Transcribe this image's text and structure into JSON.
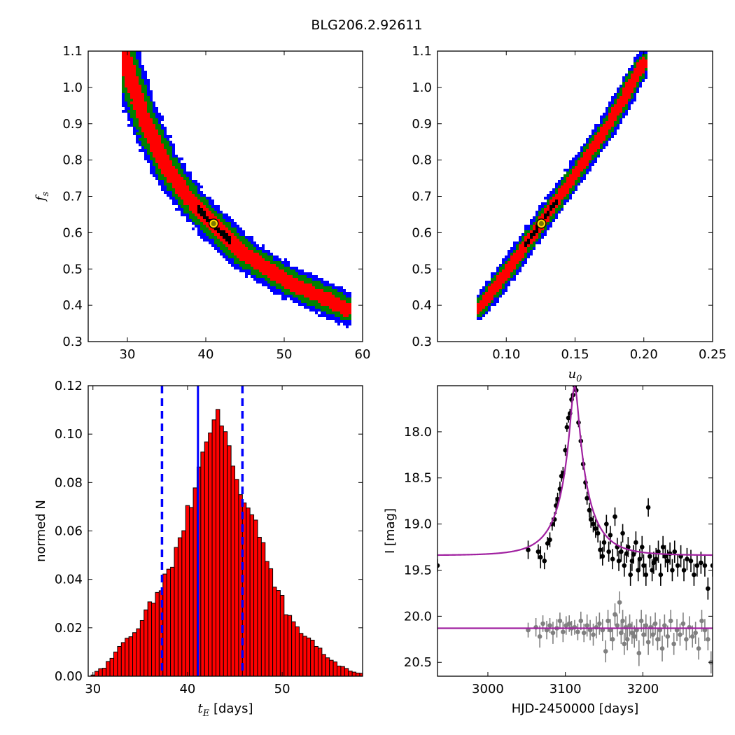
{
  "figure": {
    "title": "BLG206.2.92611"
  },
  "chart_data": [
    {
      "id": "panel_fs_vs_tE",
      "type": "heatmap",
      "xlabel": "",
      "ylabel": "f_s",
      "xlim": [
        25,
        60
      ],
      "ylim": [
        0.3,
        1.1
      ],
      "xticks": [
        "30",
        "40",
        "50",
        "60"
      ],
      "yticks": [
        "0.3",
        "0.4",
        "0.5",
        "0.6",
        "0.7",
        "0.8",
        "0.9",
        "1.0",
        "1.1"
      ],
      "levels": [
        {
          "color": "#0000ff",
          "halfwidth": 0.058
        },
        {
          "color": "#008000",
          "halfwidth": 0.042
        },
        {
          "color": "#ff0000",
          "halfwidth": 0.024
        },
        {
          "color": "#000000",
          "halfwidth": 0.008
        }
      ],
      "ridge_points": [
        [
          29.5,
          1.09
        ],
        [
          32,
          0.92
        ],
        [
          35,
          0.78
        ],
        [
          38,
          0.69
        ],
        [
          41,
          0.62
        ],
        [
          45,
          0.54
        ],
        [
          50,
          0.47
        ],
        [
          55,
          0.42
        ],
        [
          58,
          0.39
        ]
      ],
      "best_fit": {
        "x": 41.0,
        "y": 0.625
      }
    },
    {
      "id": "panel_fs_vs_u0",
      "type": "heatmap",
      "xlabel": "u_0",
      "ylabel": "",
      "xlim": [
        0.05,
        0.25
      ],
      "ylim": [
        0.3,
        1.1
      ],
      "xticks": [
        "0.10",
        "0.15",
        "0.20",
        "0.25"
      ],
      "yticks": [
        "0.3",
        "0.4",
        "0.5",
        "0.6",
        "0.7",
        "0.8",
        "0.9",
        "1.0",
        "1.1"
      ],
      "levels": [
        {
          "color": "#0000ff",
          "halfwidth": 0.036
        },
        {
          "color": "#008000",
          "halfwidth": 0.026
        },
        {
          "color": "#ff0000",
          "halfwidth": 0.016
        },
        {
          "color": "#000000",
          "halfwidth": 0.006
        }
      ],
      "ridge_points": [
        [
          0.08,
          0.39
        ],
        [
          0.1,
          0.49
        ],
        [
          0.125,
          0.625
        ],
        [
          0.15,
          0.76
        ],
        [
          0.175,
          0.9
        ],
        [
          0.2,
          1.07
        ]
      ],
      "best_fit": {
        "x": 0.1255,
        "y": 0.625
      }
    },
    {
      "id": "panel_tE_histogram",
      "type": "bar",
      "xlabel": "t_E [days]",
      "ylabel": "normed N",
      "xlim": [
        29.5,
        58.5
      ],
      "ylim": [
        0.0,
        0.12
      ],
      "xticks": [
        "30",
        "40",
        "50"
      ],
      "yticks": [
        "0.00",
        "0.02",
        "0.04",
        "0.06",
        "0.08",
        "0.10",
        "0.12"
      ],
      "bar_color": "#ff0000",
      "bin_width": 0.4,
      "x_start": 29.8,
      "values": [
        0.0005,
        0.002,
        0.0031,
        0.0033,
        0.0061,
        0.0074,
        0.01,
        0.0123,
        0.0139,
        0.0157,
        0.0163,
        0.018,
        0.0196,
        0.023,
        0.0274,
        0.0307,
        0.0302,
        0.0346,
        0.0353,
        0.0422,
        0.0442,
        0.045,
        0.0532,
        0.0572,
        0.0601,
        0.0705,
        0.0697,
        0.0778,
        0.0864,
        0.0926,
        0.0968,
        0.1005,
        0.1059,
        0.1102,
        0.1034,
        0.101,
        0.0952,
        0.0868,
        0.0813,
        0.075,
        0.0716,
        0.0695,
        0.0667,
        0.0645,
        0.0574,
        0.0552,
        0.0474,
        0.0444,
        0.0368,
        0.0354,
        0.0334,
        0.0254,
        0.0251,
        0.0225,
        0.0204,
        0.0177,
        0.0165,
        0.0158,
        0.0149,
        0.0123,
        0.0116,
        0.009,
        0.0076,
        0.0066,
        0.0059,
        0.0042,
        0.004,
        0.0032,
        0.0021,
        0.0017,
        0.0013,
        0.0012
      ],
      "median": 41.1,
      "lower_bound": 37.3,
      "upper_bound": 45.8
    },
    {
      "id": "panel_light_curve",
      "type": "scatter",
      "xlabel": "HJD-2450000 [days]",
      "ylabel": "I [mag]",
      "xlim": [
        2935,
        3290
      ],
      "ylim": [
        20.65,
        17.5
      ],
      "xticks": [
        "3000",
        "3100",
        "3200"
      ],
      "yticks": [
        "18.0",
        "18.5",
        "19.0",
        "19.5",
        "20.0",
        "20.5"
      ],
      "model_color": "#a020a0",
      "event_model": {
        "t0": 3112,
        "tE": 41,
        "u0": 0.1255,
        "fs": 0.625,
        "baseline": 19.34
      },
      "flat_model": {
        "baseline": 20.13
      },
      "series": [
        {
          "name": "",
          "color": "#000000",
          "points": [
            [
              2935,
              19.45,
              0.07
            ],
            [
              3052,
              19.28,
              0.1
            ],
            [
              3065,
              19.3,
              0.08
            ],
            [
              3068,
              19.36,
              0.12
            ],
            [
              3073,
              19.4,
              0.09
            ],
            [
              3077,
              19.21,
              0.07
            ],
            [
              3080,
              19.17,
              0.08
            ],
            [
              3083,
              19.0,
              0.07
            ],
            [
              3086,
              18.95,
              0.08
            ],
            [
              3088,
              18.8,
              0.09
            ],
            [
              3090,
              18.73,
              0.07
            ],
            [
              3093,
              18.62,
              0.08
            ],
            [
              3095,
              18.48,
              0.06
            ],
            [
              3097,
              18.45,
              0.07
            ],
            [
              3100,
              18.2,
              0.06
            ],
            [
              3102,
              17.95,
              0.05
            ],
            [
              3104,
              17.85,
              0.05
            ],
            [
              3106,
              17.8,
              0.05
            ],
            [
              3108,
              17.65,
              0.04
            ],
            [
              3110,
              17.6,
              0.04
            ],
            [
              3112,
              17.5,
              0.04
            ],
            [
              3114,
              17.55,
              0.04
            ],
            [
              3117,
              17.9,
              0.05
            ],
            [
              3120,
              18.1,
              0.06
            ],
            [
              3123,
              18.35,
              0.06
            ],
            [
              3126,
              18.55,
              0.07
            ],
            [
              3128,
              18.72,
              0.07
            ],
            [
              3131,
              18.85,
              0.08
            ],
            [
              3133,
              18.95,
              0.09
            ],
            [
              3136,
              19.0,
              0.09
            ],
            [
              3139,
              19.05,
              0.1
            ],
            [
              3142,
              19.1,
              0.1
            ],
            [
              3145,
              19.28,
              0.1
            ],
            [
              3148,
              19.35,
              0.1
            ],
            [
              3150,
              19.2,
              0.1
            ],
            [
              3153,
              19.0,
              0.1
            ],
            [
              3156,
              19.3,
              0.11
            ],
            [
              3158,
              19.12,
              0.1
            ],
            [
              3161,
              19.38,
              0.11
            ],
            [
              3164,
              18.92,
              0.1
            ],
            [
              3167,
              19.25,
              0.1
            ],
            [
              3169,
              19.4,
              0.11
            ],
            [
              3172,
              19.3,
              0.11
            ],
            [
              3174,
              19.1,
              0.1
            ],
            [
              3176,
              19.45,
              0.12
            ],
            [
              3179,
              19.32,
              0.1
            ],
            [
              3181,
              19.25,
              0.11
            ],
            [
              3184,
              19.55,
              0.12
            ],
            [
              3186,
              19.4,
              0.11
            ],
            [
              3188,
              19.33,
              0.1
            ],
            [
              3191,
              19.2,
              0.12
            ],
            [
              3194,
              19.5,
              0.12
            ],
            [
              3196,
              19.38,
              0.11
            ],
            [
              3199,
              19.25,
              0.12
            ],
            [
              3201,
              19.45,
              0.12
            ],
            [
              3204,
              19.55,
              0.12
            ],
            [
              3207,
              18.82,
              0.1
            ],
            [
              3209,
              19.35,
              0.12
            ],
            [
              3212,
              19.5,
              0.12
            ],
            [
              3214,
              19.42,
              0.12
            ],
            [
              3217,
              19.38,
              0.12
            ],
            [
              3220,
              19.3,
              0.12
            ],
            [
              3223,
              19.55,
              0.12
            ],
            [
              3226,
              19.25,
              0.12
            ],
            [
              3229,
              19.35,
              0.12
            ],
            [
              3232,
              19.4,
              0.12
            ],
            [
              3235,
              19.32,
              0.12
            ],
            [
              3238,
              19.5,
              0.12
            ],
            [
              3241,
              19.3,
              0.12
            ],
            [
              3245,
              19.45,
              0.12
            ],
            [
              3249,
              19.35,
              0.12
            ],
            [
              3253,
              19.5,
              0.12
            ],
            [
              3257,
              19.38,
              0.12
            ],
            [
              3262,
              19.4,
              0.12
            ],
            [
              3266,
              19.55,
              0.12
            ],
            [
              3270,
              19.45,
              0.12
            ],
            [
              3275,
              19.42,
              0.12
            ],
            [
              3280,
              19.45,
              0.12
            ],
            [
              3284,
              19.7,
              0.12
            ],
            [
              3290,
              19.45,
              0.12
            ]
          ]
        },
        {
          "name": "",
          "color": "#808080",
          "points": [
            [
              3052,
              20.15,
              0.08
            ],
            [
              3062,
              20.12,
              0.1
            ],
            [
              3067,
              20.22,
              0.12
            ],
            [
              3071,
              20.08,
              0.09
            ],
            [
              3076,
              20.15,
              0.1
            ],
            [
              3080,
              20.1,
              0.08
            ],
            [
              3084,
              20.18,
              0.12
            ],
            [
              3089,
              20.13,
              0.1
            ],
            [
              3093,
              20.05,
              0.09
            ],
            [
              3097,
              20.17,
              0.11
            ],
            [
              3101,
              20.1,
              0.1
            ],
            [
              3105,
              20.08,
              0.09
            ],
            [
              3108,
              20.13,
              0.08
            ],
            [
              3112,
              20.12,
              0.08
            ],
            [
              3116,
              20.17,
              0.09
            ],
            [
              3120,
              20.05,
              0.1
            ],
            [
              3124,
              20.18,
              0.1
            ],
            [
              3128,
              20.1,
              0.12
            ],
            [
              3132,
              20.15,
              0.11
            ],
            [
              3136,
              20.2,
              0.12
            ],
            [
              3140,
              20.12,
              0.12
            ],
            [
              3144,
              20.08,
              0.12
            ],
            [
              3148,
              20.15,
              0.12
            ],
            [
              3152,
              20.38,
              0.12
            ],
            [
              3155,
              20.05,
              0.12
            ],
            [
              3158,
              20.15,
              0.12
            ],
            [
              3161,
              20.25,
              0.12
            ],
            [
              3164,
              19.98,
              0.12
            ],
            [
              3167,
              20.1,
              0.12
            ],
            [
              3170,
              19.85,
              0.12
            ],
            [
              3172,
              20.18,
              0.12
            ],
            [
              3174,
              20.05,
              0.12
            ],
            [
              3176,
              20.3,
              0.12
            ],
            [
              3178,
              20.12,
              0.12
            ],
            [
              3180,
              20.25,
              0.12
            ],
            [
              3183,
              20.1,
              0.12
            ],
            [
              3186,
              20.18,
              0.12
            ],
            [
              3189,
              20.22,
              0.12
            ],
            [
              3192,
              20.15,
              0.12
            ],
            [
              3195,
              20.4,
              0.14
            ],
            [
              3198,
              20.05,
              0.12
            ],
            [
              3201,
              20.2,
              0.12
            ],
            [
              3204,
              20.1,
              0.12
            ],
            [
              3207,
              20.28,
              0.14
            ],
            [
              3210,
              20.12,
              0.12
            ],
            [
              3213,
              20.2,
              0.12
            ],
            [
              3216,
              20.08,
              0.12
            ],
            [
              3219,
              20.25,
              0.12
            ],
            [
              3222,
              20.15,
              0.12
            ],
            [
              3225,
              20.35,
              0.14
            ],
            [
              3228,
              20.1,
              0.12
            ],
            [
              3232,
              20.22,
              0.12
            ],
            [
              3236,
              20.05,
              0.12
            ],
            [
              3240,
              20.3,
              0.12
            ],
            [
              3244,
              20.15,
              0.12
            ],
            [
              3248,
              20.2,
              0.12
            ],
            [
              3252,
              20.08,
              0.12
            ],
            [
              3256,
              20.25,
              0.12
            ],
            [
              3260,
              20.12,
              0.12
            ],
            [
              3264,
              20.22,
              0.12
            ],
            [
              3268,
              20.18,
              0.12
            ],
            [
              3272,
              20.35,
              0.12
            ],
            [
              3276,
              20.05,
              0.12
            ],
            [
              3280,
              20.15,
              0.12
            ],
            [
              3284,
              20.25,
              0.12
            ],
            [
              3288,
              20.5,
              0.12
            ]
          ]
        }
      ]
    }
  ]
}
